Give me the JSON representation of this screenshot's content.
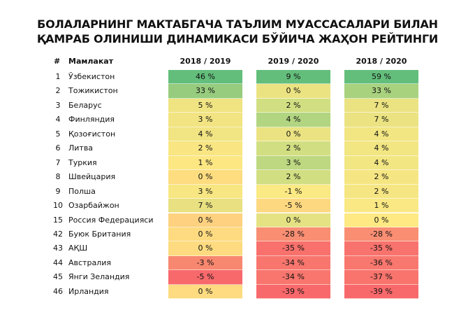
{
  "title_line1": "БОЛАЛАРНИНГ МАКТАБГАЧА ТАЪЛИМ МУАССАСАЛАРИ БИЛАН",
  "title_line2": "ҚАМРАБ ОЛИНИШИ ДИНАМИКАСИ БЎЙИЧА ЖАҲОН РЕЙТИНГИ",
  "chart_data": {
    "type": "table",
    "title": "БОЛАЛАРНИНГ МАКТАБГАЧА ТАЪЛИМ МУАССАСАЛАРИ БИЛАН ҚАМРАБ ОЛИНИШИ ДИНАМИКАСИ БЎЙИЧА ЖАҲОН РЕЙТИНГИ",
    "headers": [
      "#",
      "Мамлакат",
      "2018 / 2019",
      "2019 / 2020",
      "2018 / 2020"
    ],
    "rows": [
      {
        "rank": "1",
        "country": "Ўзбекистон",
        "values": [
          "46 %",
          "9 %",
          "59 %"
        ],
        "colors": [
          "#63be7b",
          "#63be7b",
          "#63be7b"
        ]
      },
      {
        "rank": "2",
        "country": "Тожикистон",
        "values": [
          "33 %",
          "0 %",
          "33 %"
        ],
        "colors": [
          "#97cc7e",
          "#ebe382",
          "#a9d27f"
        ]
      },
      {
        "rank": "3",
        "country": "Беларус",
        "values": [
          "5 %",
          "2 %",
          "7 %"
        ],
        "colors": [
          "#f0e382",
          "#d1df82",
          "#ebe382"
        ]
      },
      {
        "rank": "4",
        "country": "Финляндия",
        "values": [
          "3 %",
          "4 %",
          "7 %"
        ],
        "colors": [
          "#f2e482",
          "#b1d580",
          "#ebe382"
        ]
      },
      {
        "rank": "5",
        "country": "Қозоғистон",
        "values": [
          "4 %",
          "0 %",
          "4 %"
        ],
        "colors": [
          "#f1e482",
          "#ebe382",
          "#f2e683"
        ]
      },
      {
        "rank": "6",
        "country": "Литва",
        "values": [
          "2 %",
          "2 %",
          "4 %"
        ],
        "colors": [
          "#f9e683",
          "#d1df82",
          "#f2e683"
        ]
      },
      {
        "rank": "7",
        "country": "Туркия",
        "values": [
          "1 %",
          "3 %",
          "4 %"
        ],
        "colors": [
          "#fde783",
          "#bdd881",
          "#f2e683"
        ]
      },
      {
        "rank": "8",
        "country": "Швейцария",
        "values": [
          "0 %",
          "2 %",
          "2 %"
        ],
        "colors": [
          "#fedd80",
          "#d1df82",
          "#f6e683"
        ]
      },
      {
        "rank": "9",
        "country": "Полша",
        "values": [
          "3 %",
          "-1 %",
          "2 %"
        ],
        "colors": [
          "#f7e682",
          "#fbe983",
          "#f6e683"
        ]
      },
      {
        "rank": "10",
        "country": "Озарбайжон",
        "values": [
          "7 %",
          "-5 %",
          "1 %"
        ],
        "colors": [
          "#e8e081",
          "#fed880",
          "#f9e883"
        ]
      },
      {
        "rank": "15",
        "country": "Россия Федерацияси",
        "values": [
          "0 %",
          "0 %",
          "0 %"
        ],
        "colors": [
          "#fdd17f",
          "#e4e283",
          "#fee983"
        ]
      },
      {
        "rank": "42",
        "country": "Буюк Британия",
        "values": [
          "0 %",
          "-28 %",
          "-28 %"
        ],
        "colors": [
          "#fedb80",
          "#f98e73",
          "#f98e73"
        ]
      },
      {
        "rank": "43",
        "country": "АҚШ",
        "values": [
          "0 %",
          "-35 %",
          "-35 %"
        ],
        "colors": [
          "#fedb80",
          "#f8716c",
          "#f8736d"
        ]
      },
      {
        "rank": "44",
        "country": "Австралия",
        "values": [
          "-3 %",
          "-34 %",
          "-36 %"
        ],
        "colors": [
          "#f8876f",
          "#f8766e",
          "#f8776e"
        ]
      },
      {
        "rank": "45",
        "country": "Янги Зеландия",
        "values": [
          "-5 %",
          "-34 %",
          "-37 %"
        ],
        "colors": [
          "#f8696b",
          "#f8766e",
          "#f8746d"
        ]
      },
      {
        "rank": "46",
        "country": "Ирландия",
        "values": [
          "0 %",
          "-39 %",
          "-39 %"
        ],
        "colors": [
          "#fedb80",
          "#f8696b",
          "#f8696b"
        ]
      }
    ]
  }
}
